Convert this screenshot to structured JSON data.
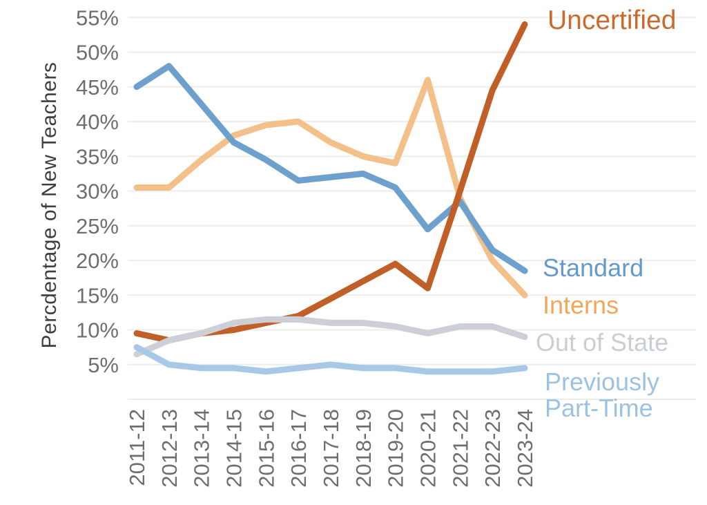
{
  "chart_data": {
    "type": "line",
    "title": "",
    "xlabel": "",
    "ylabel": "Percdentage of New Teachers",
    "ylim": [
      0,
      55
    ],
    "ytick_values": [
      5,
      10,
      15,
      20,
      25,
      30,
      35,
      40,
      45,
      50,
      55
    ],
    "ytick_suffix": "%",
    "grid": "horizontal",
    "legend_position": "inline-right",
    "categories": [
      "2011-12",
      "2012-13",
      "2013-14",
      "2014-15",
      "2015-16",
      "2016-17",
      "2017-18",
      "2018-19",
      "2019-20",
      "2020-21",
      "2021-22",
      "2022-23",
      "2023-24"
    ],
    "series": [
      {
        "name": "Uncertified",
        "label_text": "Uncertified",
        "color": "#c06028",
        "label_color": "#c96a2f",
        "values": [
          9.5,
          8.5,
          9.5,
          10,
          11,
          12,
          14.5,
          17,
          19.5,
          16,
          30,
          44.5,
          54
        ]
      },
      {
        "name": "Standard",
        "label_text": "Standard",
        "color": "#6da0cc",
        "label_color": "#6599c9",
        "values": [
          45,
          48,
          42.5,
          37,
          34.5,
          31.5,
          32,
          32.5,
          30.5,
          24.5,
          28.5,
          21.5,
          18.5
        ]
      },
      {
        "name": "Interns",
        "label_text": "Interns",
        "color": "#f3c08a",
        "label_color": "#f3a65a",
        "values": [
          30.5,
          30.5,
          34.5,
          38,
          39.5,
          40,
          37,
          35,
          34,
          46,
          29,
          20,
          15
        ]
      },
      {
        "name": "Out of State",
        "label_text": "Out of State",
        "color": "#ccd0d6",
        "label_color": "#c9cdd4",
        "values": [
          6.5,
          8.5,
          9.5,
          11,
          11.5,
          11.5,
          11,
          11,
          10.5,
          9.5,
          10.5,
          10.5,
          9
        ]
      },
      {
        "name": "Previously Part-Time",
        "label_text": "Previously\nPart-Time",
        "color": "#a7c8e6",
        "label_color": "#9cc2e3",
        "values": [
          7.5,
          5,
          4.5,
          4.5,
          4,
          4.5,
          5,
          4.5,
          4.5,
          4,
          4,
          4,
          4.5
        ]
      }
    ]
  }
}
